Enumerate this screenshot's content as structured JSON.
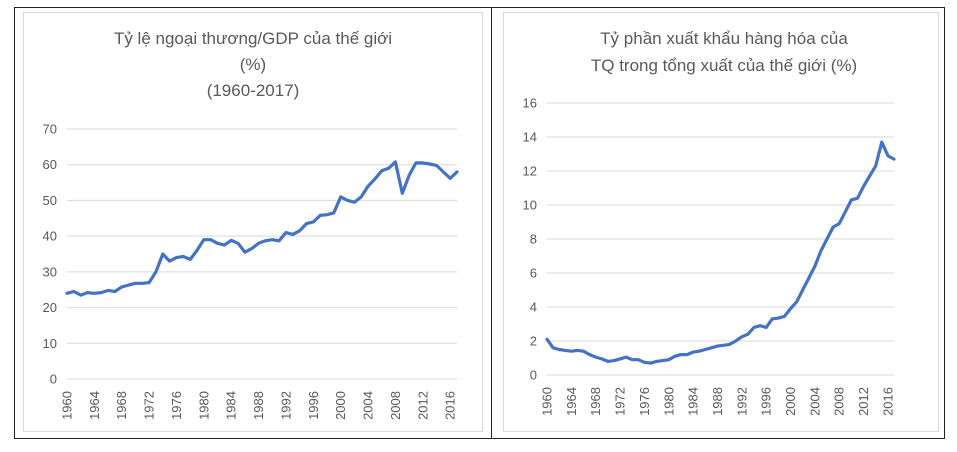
{
  "chart_data": [
    {
      "type": "line",
      "title_lines": [
        "Tỷ lệ ngoại thương/GDP của thế giới",
        "(%)",
        "(1960-2017)"
      ],
      "xlabel": "",
      "ylabel": "",
      "ylim": [
        0,
        70
      ],
      "yticks": [
        0,
        10,
        20,
        30,
        40,
        50,
        60,
        70
      ],
      "xticks": [
        "1960",
        "1964",
        "1968",
        "1972",
        "1976",
        "1980",
        "1984",
        "1988",
        "1992",
        "1996",
        "2000",
        "2004",
        "2008",
        "2012",
        "2016"
      ],
      "grid": true,
      "legend": "none",
      "color": "#4472c4",
      "series": [
        {
          "x": [
            1960,
            1961,
            1962,
            1963,
            1964,
            1965,
            1966,
            1967,
            1968,
            1969,
            1970,
            1971,
            1972,
            1973,
            1974,
            1975,
            1976,
            1977,
            1978,
            1979,
            1980,
            1981,
            1982,
            1983,
            1984,
            1985,
            1986,
            1987,
            1988,
            1989,
            1990,
            1991,
            1992,
            1993,
            1994,
            1995,
            1996,
            1997,
            1998,
            1999,
            2000,
            2001,
            2002,
            2003,
            2004,
            2005,
            2006,
            2007,
            2008,
            2009,
            2010,
            2011,
            2012,
            2013,
            2014,
            2015,
            2016,
            2017
          ],
          "values": [
            24,
            24.5,
            23.5,
            24.2,
            24,
            24.2,
            24.8,
            24.5,
            25.8,
            26.3,
            26.8,
            26.8,
            27,
            30,
            35,
            33,
            34,
            34.3,
            33.5,
            36,
            39,
            39,
            38,
            37.5,
            38.8,
            38,
            35.5,
            36.5,
            38,
            38.7,
            39,
            38.7,
            41,
            40.5,
            41.5,
            43.5,
            44,
            45.8,
            46,
            46.5,
            51,
            50,
            49.5,
            51,
            54,
            56,
            58.3,
            59,
            60.8,
            52,
            57,
            60.5,
            60.5,
            60.2,
            59.8,
            58,
            56.2,
            58
          ]
        }
      ]
    },
    {
      "type": "line",
      "title_lines": [
        "Tỷ phần xuất khẩu hàng hóa của",
        "TQ trong tổng xuất của thế giới  (%)"
      ],
      "xlabel": "",
      "ylabel": "",
      "ylim": [
        0,
        16
      ],
      "yticks": [
        0,
        2,
        4,
        6,
        8,
        10,
        12,
        14,
        16
      ],
      "xticks": [
        "1960",
        "1964",
        "1968",
        "1972",
        "1976",
        "1980",
        "1984",
        "1988",
        "1992",
        "1996",
        "2000",
        "2004",
        "2008",
        "2012",
        "2016"
      ],
      "grid": true,
      "legend": "none",
      "color": "#4472c4",
      "series": [
        {
          "x": [
            1960,
            1961,
            1962,
            1963,
            1964,
            1965,
            1966,
            1967,
            1968,
            1969,
            1970,
            1971,
            1972,
            1973,
            1974,
            1975,
            1976,
            1977,
            1978,
            1979,
            1980,
            1981,
            1982,
            1983,
            1984,
            1985,
            1986,
            1987,
            1988,
            1989,
            1990,
            1991,
            1992,
            1993,
            1994,
            1995,
            1996,
            1997,
            1998,
            1999,
            2000,
            2001,
            2002,
            2003,
            2004,
            2005,
            2006,
            2007,
            2008,
            2009,
            2010,
            2011,
            2012,
            2013,
            2014,
            2015,
            2016,
            2017
          ],
          "values": [
            2.1,
            1.6,
            1.5,
            1.45,
            1.4,
            1.45,
            1.4,
            1.2,
            1.05,
            0.95,
            0.8,
            0.85,
            0.95,
            1.05,
            0.9,
            0.9,
            0.75,
            0.7,
            0.8,
            0.85,
            0.9,
            1.1,
            1.2,
            1.2,
            1.35,
            1.4,
            1.5,
            1.6,
            1.7,
            1.75,
            1.8,
            2.0,
            2.25,
            2.4,
            2.8,
            2.9,
            2.8,
            3.3,
            3.35,
            3.45,
            3.9,
            4.3,
            5.0,
            5.7,
            6.4,
            7.3,
            8.0,
            8.7,
            8.9,
            9.6,
            10.3,
            10.4,
            11.1,
            11.7,
            12.3,
            13.7,
            12.9,
            12.7
          ]
        }
      ]
    }
  ]
}
